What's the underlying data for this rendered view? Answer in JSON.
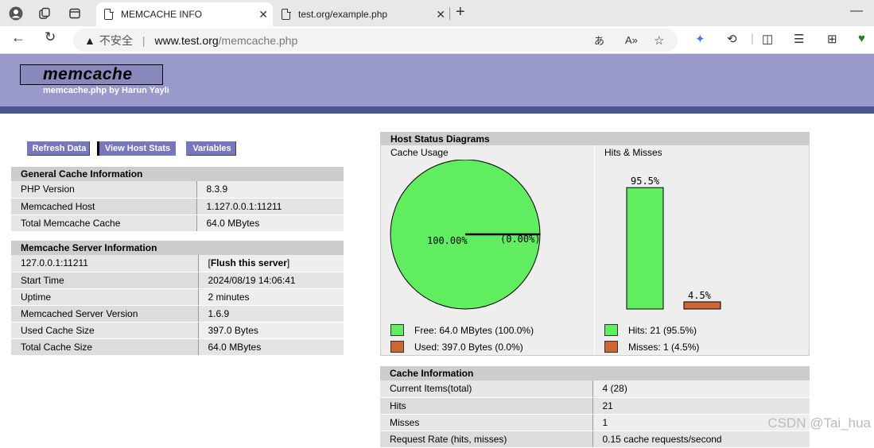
{
  "browser": {
    "tabs": [
      {
        "title": "MEMCACHE INFO",
        "active": true
      },
      {
        "title": "test.org/example.php",
        "active": false
      }
    ],
    "address": {
      "insecure_label": "不安全",
      "host": "www.test.org",
      "path": "/memcache.php"
    }
  },
  "header": {
    "title": "memcache",
    "subtitle": "memcache.php by Harun Yayli"
  },
  "buttons": {
    "refresh": "Refresh Data",
    "host_stats": "View Host Stats",
    "variables": "Variables"
  },
  "general": {
    "heading": "General Cache Information",
    "rows": [
      {
        "key": "PHP Version",
        "value": "8.3.9"
      },
      {
        "key": "Memcached Host",
        "value": "1.127.0.0.1:11211"
      },
      {
        "key": "Total Memcache Cache",
        "value": "64.0 MBytes"
      }
    ]
  },
  "server": {
    "heading": "Memcache Server Information",
    "address": "127.0.0.1:11211",
    "flush_label": "Flush this server",
    "rows": [
      {
        "key": "Start Time",
        "value": "2024/08/19 14:06:41"
      },
      {
        "key": "Uptime",
        "value": "2 minutes"
      },
      {
        "key": "Memcached Server Version",
        "value": "1.6.9"
      },
      {
        "key": "Used Cache Size",
        "value": "397.0 Bytes"
      },
      {
        "key": "Total Cache Size",
        "value": "64.0 MBytes"
      }
    ]
  },
  "diagrams": {
    "heading": "Host Status Diagrams",
    "cache_usage_label": "Cache Usage",
    "hits_label": "Hits & Misses",
    "pie_main_label": "100.00%",
    "pie_small_label": "(0.00%)",
    "free_legend": "Free: 64.0 MBytes (100.0%)",
    "used_legend": "Used: 397.0 Bytes (0.0%)",
    "hits_legend": "Hits: 21 (95.5%)",
    "misses_legend": "Misses: 1 (4.5%)",
    "hits_pct_label": "95.5%",
    "misses_pct_label": "4.5%",
    "colors": {
      "green": "#60ee60",
      "orange": "#cc6633"
    }
  },
  "chart_data": [
    {
      "type": "pie",
      "categories": [
        "Free",
        "Used"
      ],
      "values": [
        100.0,
        0.0
      ]
    },
    {
      "type": "bar",
      "categories": [
        "Hits",
        "Misses"
      ],
      "values": [
        95.5,
        4.5
      ]
    }
  ],
  "cache_info": {
    "heading": "Cache Information",
    "rows": [
      {
        "key": "Current Items(total)",
        "value": "4 (28)"
      },
      {
        "key": "Hits",
        "value": "21"
      },
      {
        "key": "Misses",
        "value": "1"
      },
      {
        "key": "Request Rate (hits, misses)",
        "value": "0.15 cache requests/second"
      }
    ]
  },
  "watermark": "CSDN @Tai_hua"
}
